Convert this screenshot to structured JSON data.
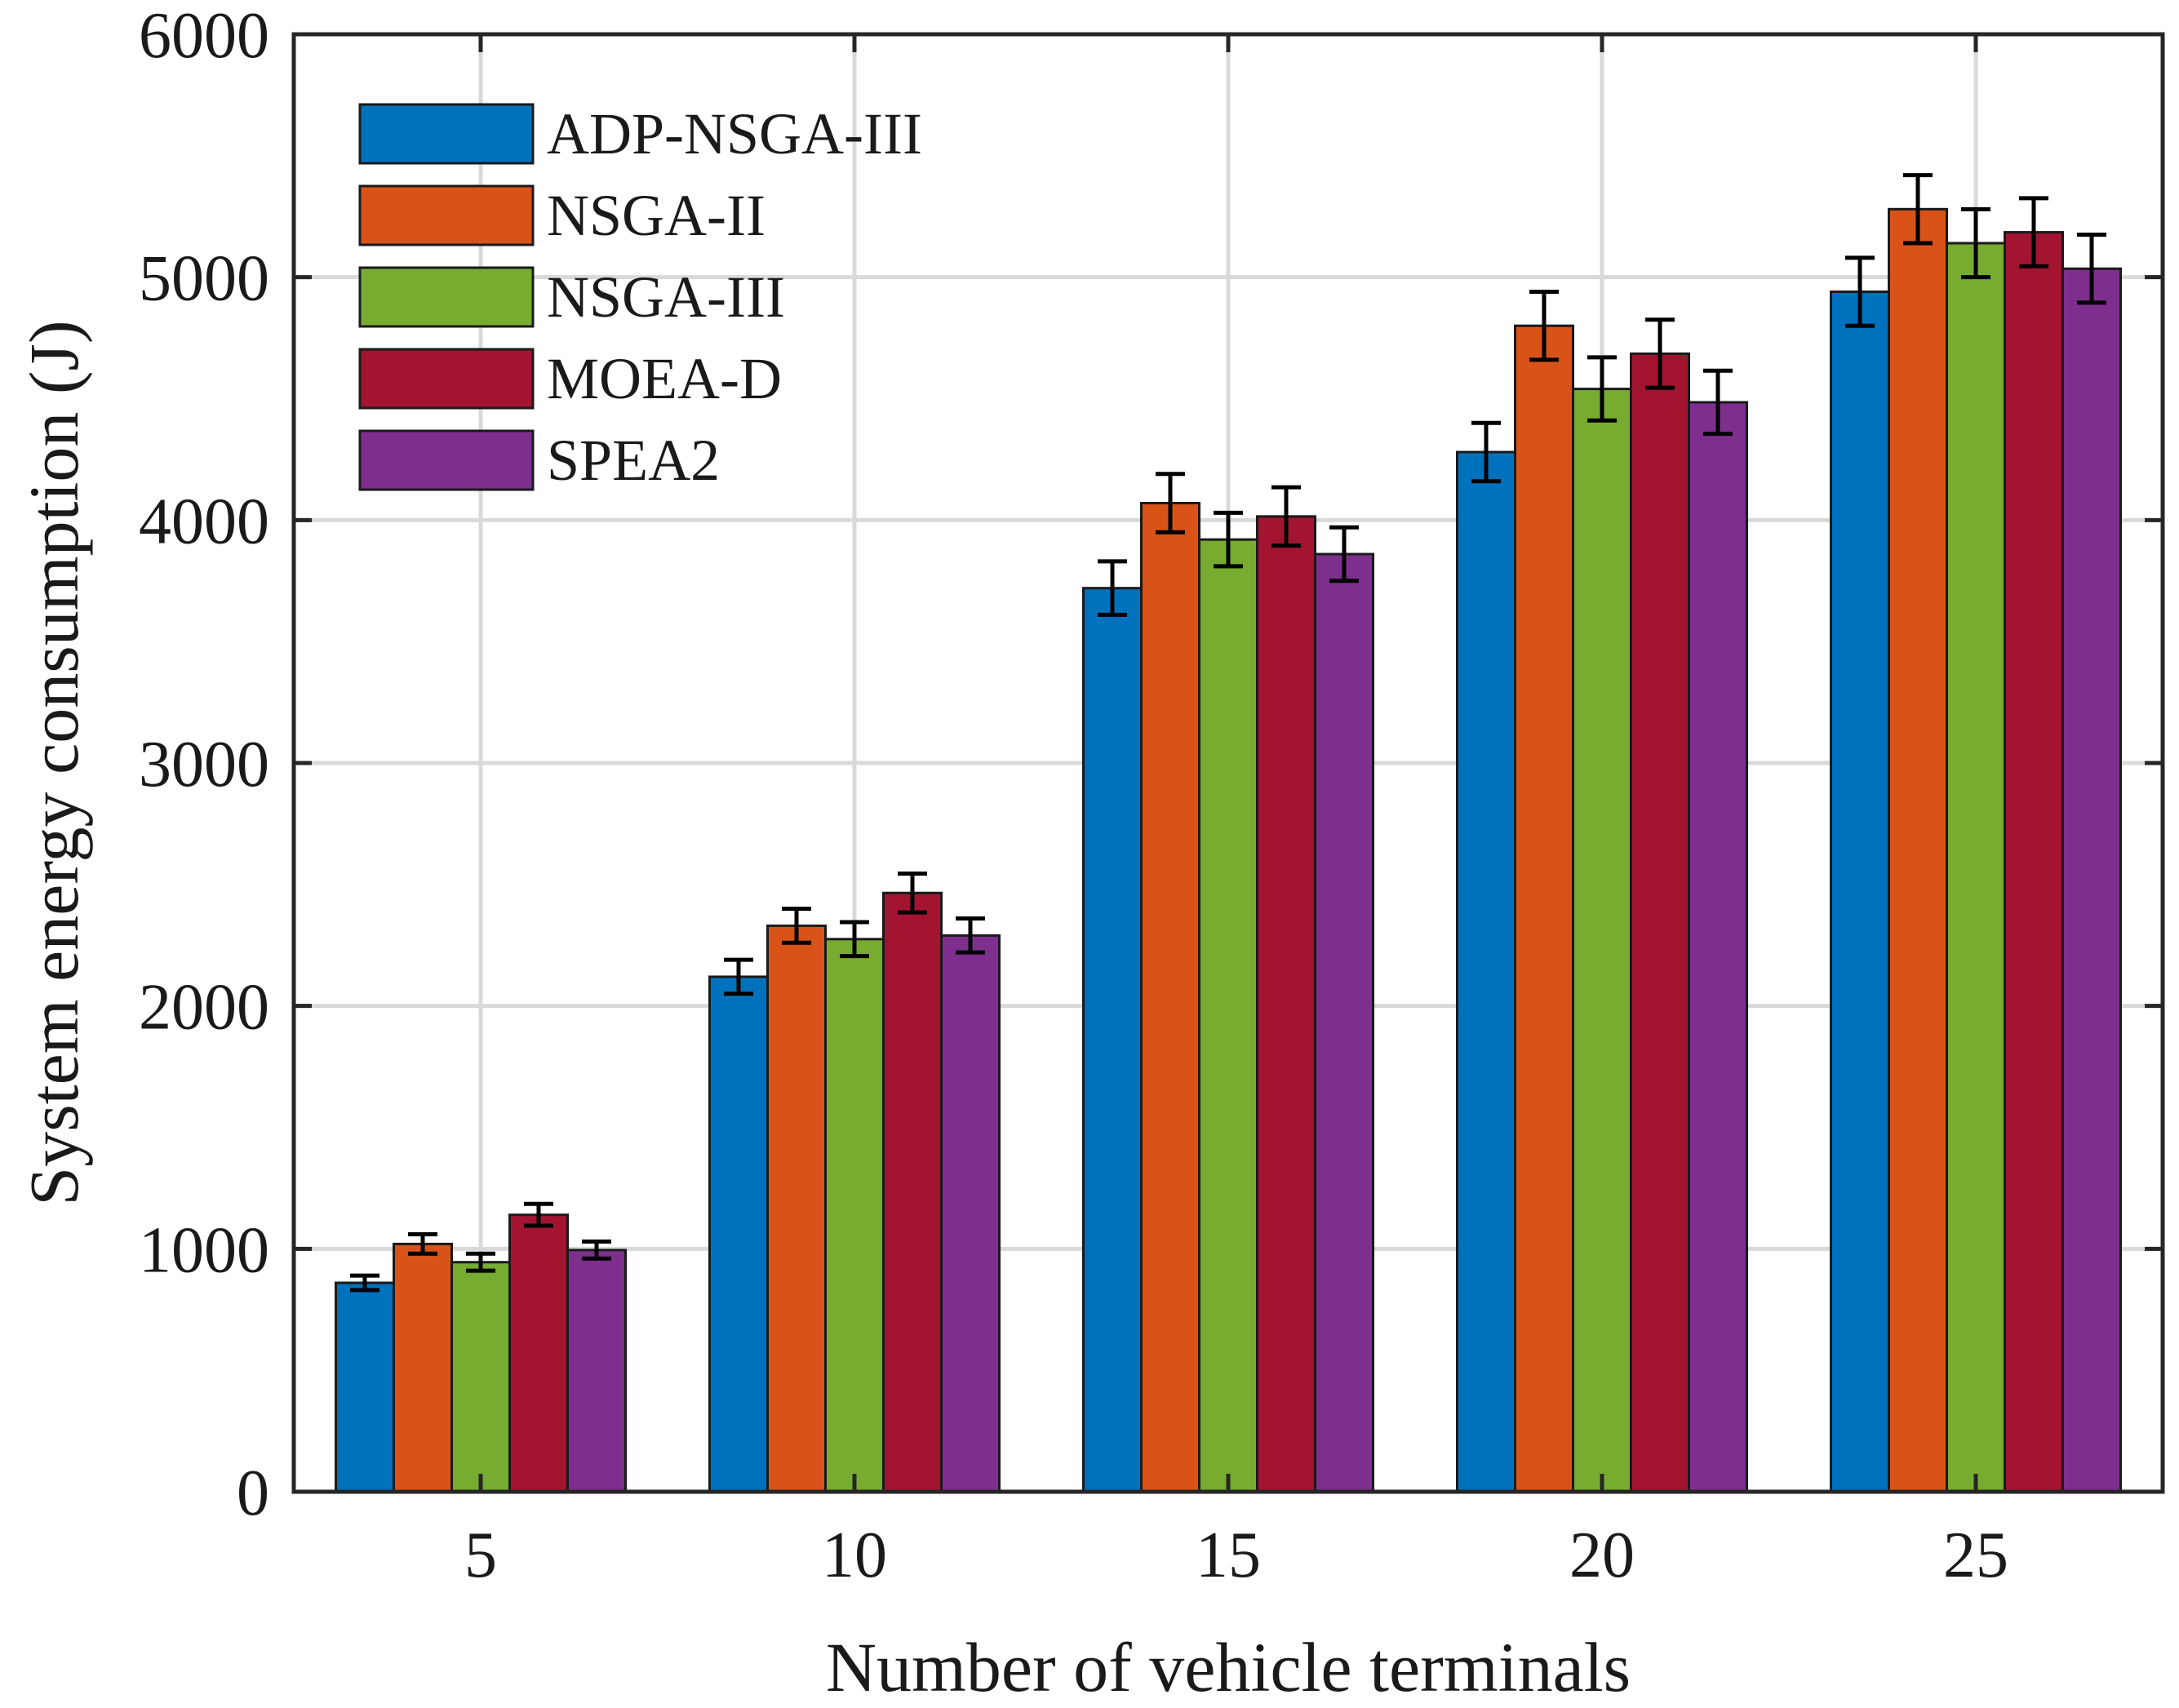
{
  "chart_data": {
    "type": "bar",
    "title": "",
    "xlabel": "Number of vehicle terminals",
    "ylabel": "System energy consumption (J)",
    "categories": [
      "5",
      "10",
      "15",
      "20",
      "25"
    ],
    "ylim": [
      0,
      6000
    ],
    "yticks": [
      "0",
      "1000",
      "2000",
      "3000",
      "4000",
      "5000",
      "6000"
    ],
    "grid": true,
    "legend_position": "top-left",
    "error_bars": true,
    "series": [
      {
        "name": "ADP-NSGA-III",
        "color": "#0072BD",
        "values": [
          860,
          2120,
          3720,
          4280,
          4940
        ],
        "errors": [
          30,
          70,
          110,
          120,
          140
        ]
      },
      {
        "name": "NSGA-II",
        "color": "#D95319",
        "values": [
          1020,
          2330,
          4070,
          4800,
          5280
        ],
        "errors": [
          40,
          70,
          120,
          140,
          140
        ]
      },
      {
        "name": "NSGA-III",
        "color": "#77AC30",
        "values": [
          945,
          2275,
          3920,
          4540,
          5140
        ],
        "errors": [
          35,
          70,
          110,
          130,
          140
        ]
      },
      {
        "name": "MOEA-D",
        "color": "#A2142F",
        "values": [
          1140,
          2465,
          4015,
          4685,
          5185
        ],
        "errors": [
          45,
          80,
          120,
          140,
          140
        ]
      },
      {
        "name": "SPEA2",
        "color": "#7E2F8E",
        "values": [
          995,
          2290,
          3860,
          4485,
          5035
        ],
        "errors": [
          35,
          70,
          110,
          130,
          140
        ]
      }
    ]
  }
}
